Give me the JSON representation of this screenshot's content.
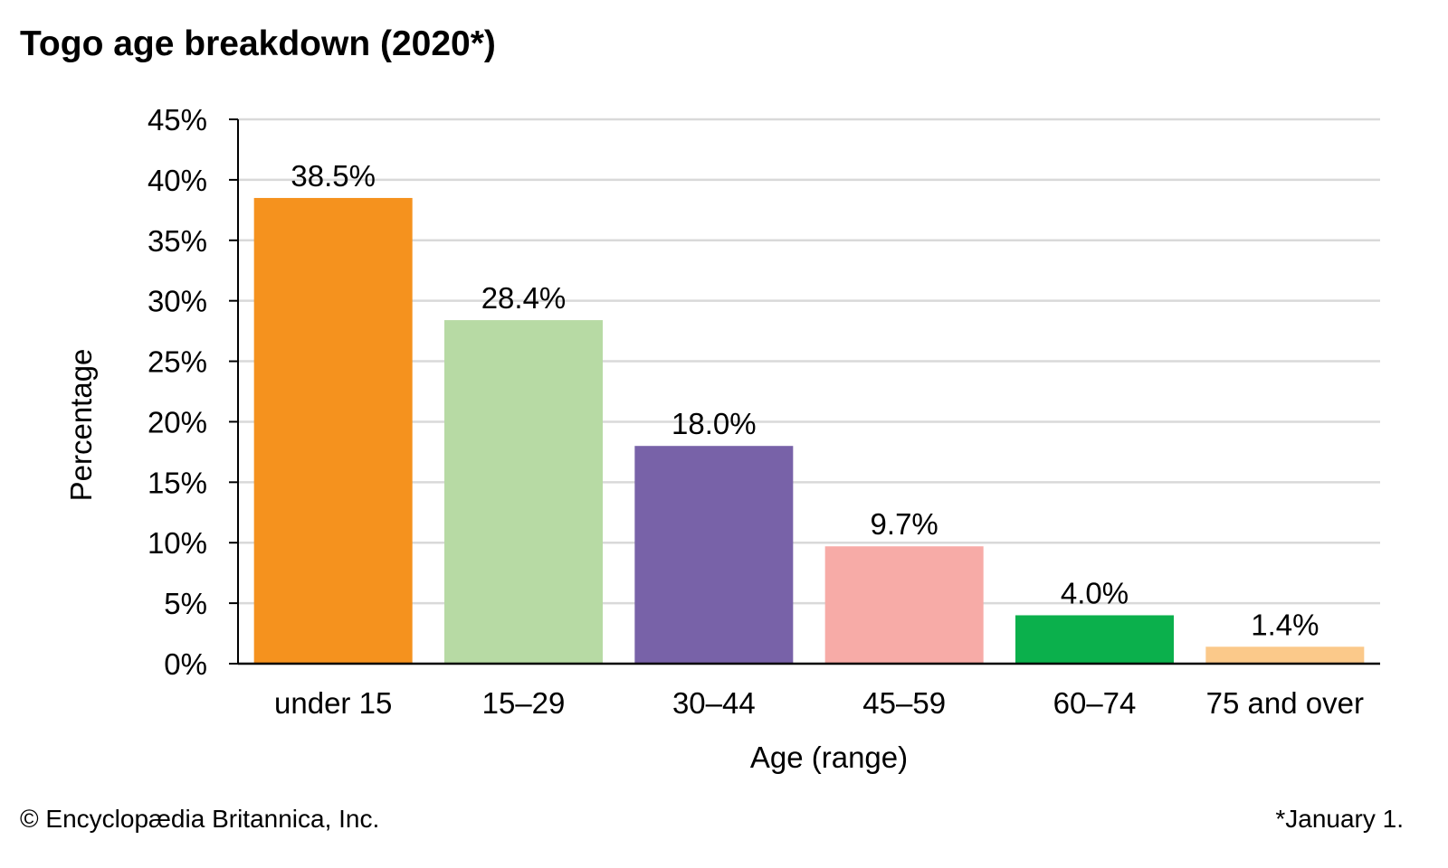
{
  "chart_data": {
    "type": "bar",
    "title": "Togo age breakdown (2020*)",
    "xlabel": "Age (range)",
    "ylabel": "Percentage",
    "categories": [
      "under 15",
      "15–29",
      "30–44",
      "45–59",
      "60–74",
      "75 and over"
    ],
    "values": [
      38.5,
      28.4,
      18.0,
      9.7,
      4.0,
      1.4
    ],
    "value_labels": [
      "38.5%",
      "28.4%",
      "18.0%",
      "9.7%",
      "4.0%",
      "1.4%"
    ],
    "colors": [
      "#f5921e",
      "#b7daa4",
      "#7862a8",
      "#f7aba7",
      "#0bb04c",
      "#fbc98a"
    ],
    "ylim": [
      0,
      45
    ],
    "yticks": [
      0,
      5,
      10,
      15,
      20,
      25,
      30,
      35,
      40,
      45
    ],
    "ytick_labels": [
      "0%",
      "5%",
      "10%",
      "15%",
      "20%",
      "25%",
      "30%",
      "35%",
      "40%",
      "45%"
    ],
    "grid": true,
    "legend": "none"
  },
  "footer": {
    "copyright": "© Encyclopædia Britannica, Inc.",
    "note": "*January 1."
  }
}
